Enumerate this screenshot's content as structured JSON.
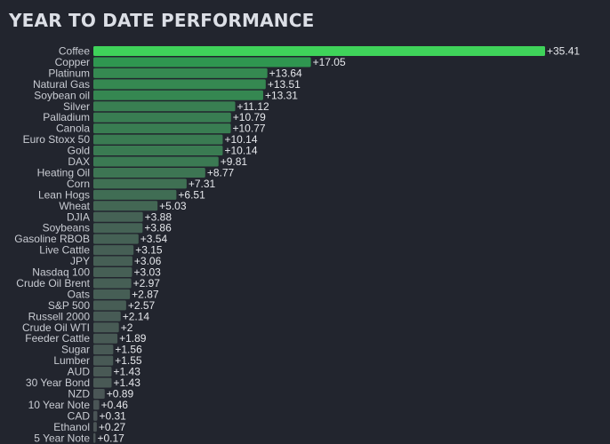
{
  "title": "YEAR TO DATE PERFORMANCE",
  "chart_data": {
    "type": "bar",
    "orientation": "horizontal",
    "title": "YEAR TO DATE PERFORMANCE",
    "categories": [
      "Coffee",
      "Copper",
      "Platinum",
      "Natural Gas",
      "Soybean oil",
      "Silver",
      "Palladium",
      "Canola",
      "Euro Stoxx 50",
      "Gold",
      "DAX",
      "Heating Oil",
      "Corn",
      "Lean Hogs",
      "Wheat",
      "DJIA",
      "Soybeans",
      "Gasoline RBOB",
      "Live Cattle",
      "JPY",
      "Nasdaq 100",
      "Crude Oil Brent",
      "Oats",
      "S&P 500",
      "Russell 2000",
      "Crude Oil WTI",
      "Feeder Cattle",
      "Sugar",
      "Lumber",
      "AUD",
      "30 Year Bond",
      "NZD",
      "10 Year Note",
      "CAD",
      "Ethanol",
      "5 Year Note"
    ],
    "values": [
      35.41,
      17.05,
      13.64,
      13.51,
      13.31,
      11.12,
      10.79,
      10.77,
      10.14,
      10.14,
      9.81,
      8.77,
      7.31,
      6.51,
      5.03,
      3.88,
      3.86,
      3.54,
      3.15,
      3.06,
      3.03,
      2.97,
      2.87,
      2.57,
      2.14,
      2,
      1.89,
      1.56,
      1.55,
      1.43,
      1.43,
      0.89,
      0.46,
      0.31,
      0.27,
      0.17
    ],
    "value_labels": [
      "+35.41",
      "+17.05",
      "+13.64",
      "+13.51",
      "+13.31",
      "+11.12",
      "+10.79",
      "+10.77",
      "+10.14",
      "+10.14",
      "+9.81",
      "+8.77",
      "+7.31",
      "+6.51",
      "+5.03",
      "+3.88",
      "+3.86",
      "+3.54",
      "+3.15",
      "+3.06",
      "+3.03",
      "+2.97",
      "+2.87",
      "+2.57",
      "+2.14",
      "+2",
      "+1.89",
      "+1.56",
      "+1.55",
      "+1.43",
      "+1.43",
      "+0.89",
      "+0.46",
      "+0.31",
      "+0.27",
      "+0.17"
    ],
    "xlim": [
      0,
      35.41
    ],
    "grid": false,
    "legend": "none",
    "colors": {
      "background": "#22252e",
      "top_bar": "#3fd35a",
      "high": "#2f9650",
      "low": "#4b5356"
    }
  }
}
